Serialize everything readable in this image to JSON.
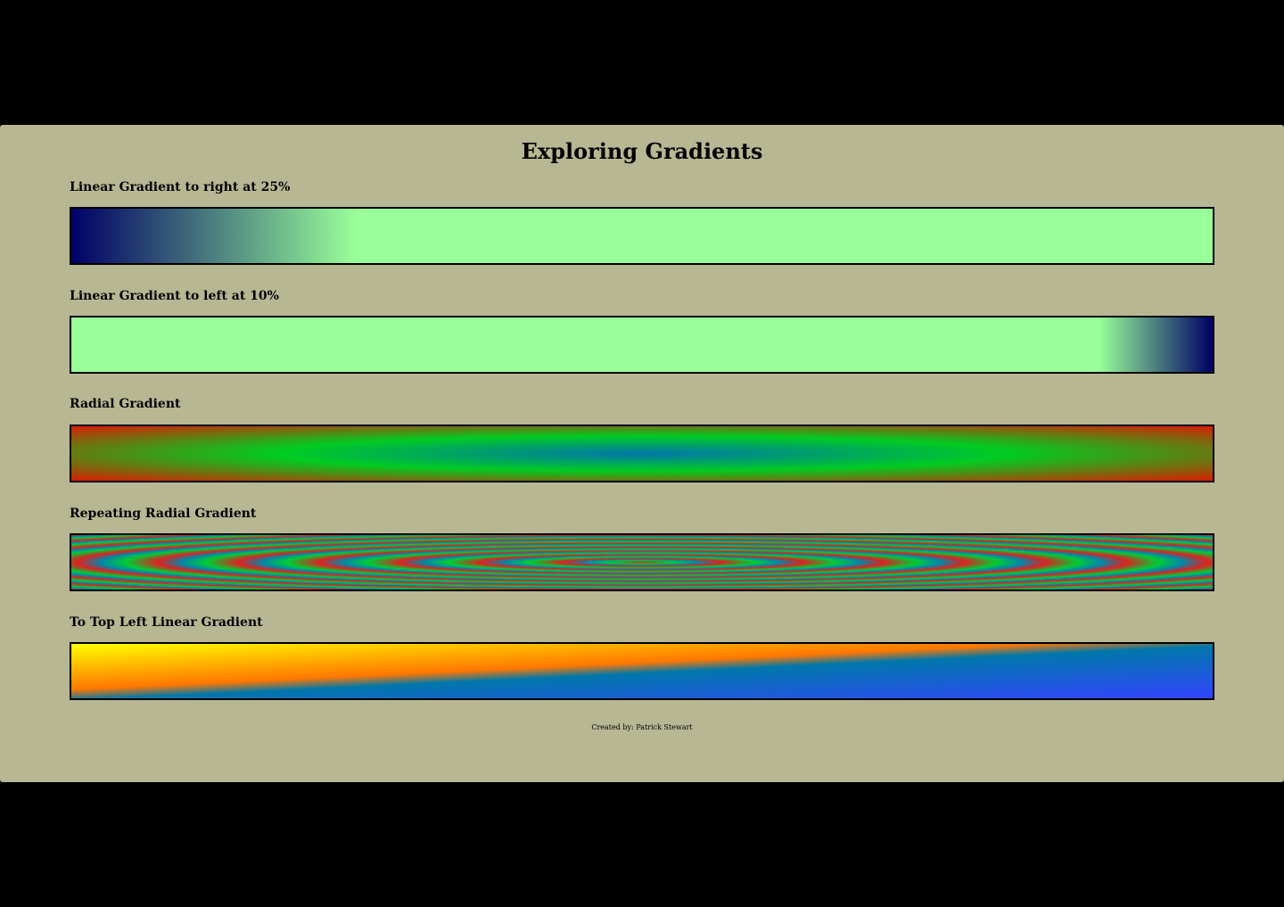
{
  "page": {
    "title": "Exploring Gradients",
    "footer": "Created by: Patrick Stewart"
  },
  "sections": [
    {
      "label": "Linear Gradient to right at 25%",
      "colors": [
        "#000066",
        "#99ff99"
      ],
      "stop_percent": 25
    },
    {
      "label": "Linear Gradient to left at 10%",
      "colors": [
        "#000066",
        "#99ff99"
      ],
      "stop_percent": 10
    },
    {
      "label": "Radial Gradient",
      "colors": [
        "#0077aa",
        "#00cc22",
        "#dd1a00"
      ]
    },
    {
      "label": "Repeating Radial Gradient",
      "colors": [
        "#dd2222",
        "#00cc33",
        "#0088aa"
      ]
    },
    {
      "label": "To Top Left Linear Gradient",
      "colors": [
        "#3344ff",
        "#0077aa",
        "#ff7700",
        "#ffff00"
      ]
    }
  ]
}
